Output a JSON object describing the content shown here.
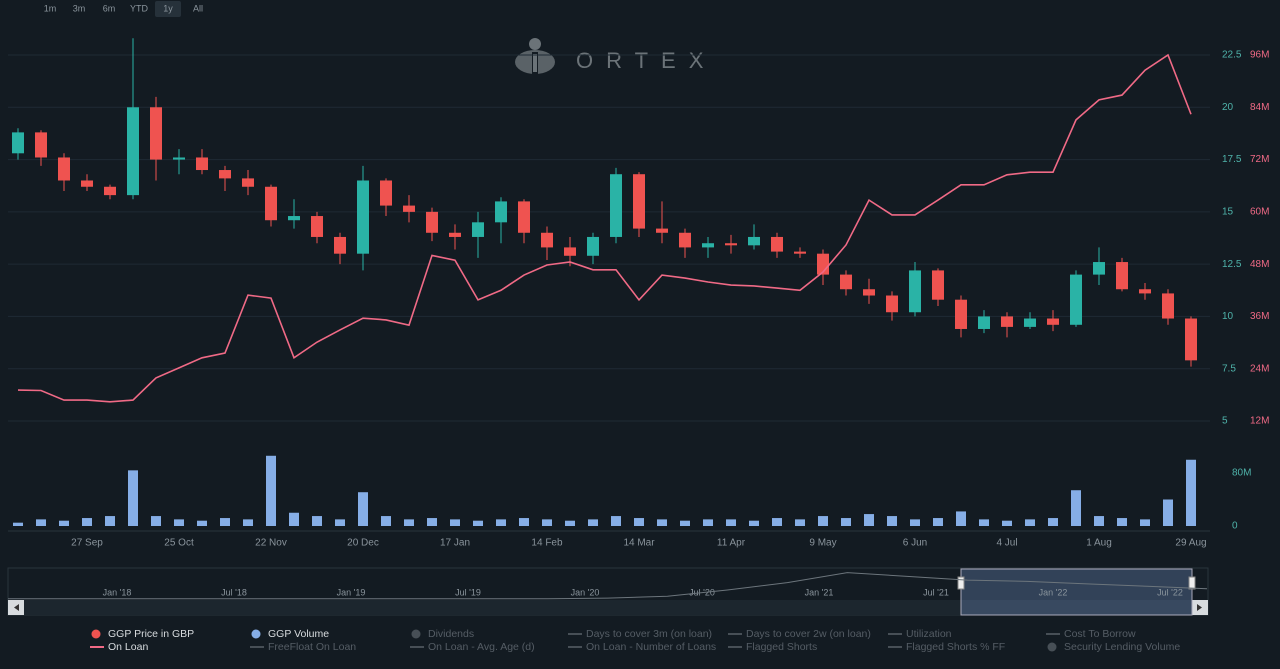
{
  "range_buttons": [
    "1m",
    "3m",
    "6m",
    "YTD",
    "1y",
    "All"
  ],
  "watermark": "ORTEX",
  "chart_data": {
    "type": "candlestick",
    "name": "GGP Price in GBP",
    "up_color": "#2ab3a6",
    "down_color": "#ef5350",
    "categories": [
      null,
      null,
      null,
      "27 Sep",
      null,
      null,
      null,
      "25 Oct",
      null,
      null,
      null,
      "22 Nov",
      null,
      null,
      null,
      "20 Dec",
      null,
      null,
      null,
      "17 Jan",
      null,
      null,
      null,
      "14 Feb",
      null,
      null,
      null,
      "14 Mar",
      null,
      null,
      null,
      "11 Apr",
      null,
      null,
      null,
      "9 May",
      null,
      null,
      null,
      "6 Jun",
      null,
      null,
      null,
      "4 Jul",
      null,
      null,
      null,
      "1 Aug",
      null,
      null,
      null,
      "29 Aug"
    ],
    "open": [
      17.8,
      18.8,
      17.6,
      16.5,
      16.2,
      15.8,
      20,
      17.5,
      17.6,
      17,
      16.6,
      16.2,
      14.6,
      14.8,
      13.8,
      13,
      16.5,
      15.3,
      15,
      14,
      13.8,
      14.5,
      15.5,
      14,
      13.3,
      12.9,
      13.8,
      16.8,
      14.2,
      14,
      13.3,
      13.5,
      13.4,
      13.8,
      13.1,
      13,
      12,
      11.3,
      11,
      10.2,
      12.2,
      10.8,
      9.4,
      10,
      9.5,
      9.9,
      9.6,
      12,
      12.6,
      11.3,
      11.1,
      9.9
    ],
    "high": [
      19,
      18.9,
      17.8,
      16.8,
      16.3,
      23.3,
      20.5,
      18,
      18,
      17.2,
      17,
      16.3,
      15.6,
      15,
      14,
      17.2,
      16.6,
      15.8,
      15.2,
      14.4,
      15,
      15.7,
      15.6,
      14.3,
      13.8,
      14,
      17.1,
      16.9,
      15.5,
      14.2,
      13.8,
      13.9,
      14.4,
      14,
      13.3,
      13.2,
      12.2,
      11.8,
      11.2,
      12.6,
      12.3,
      11,
      10.3,
      10.2,
      10.2,
      10.3,
      12.2,
      13.3,
      12.8,
      11.6,
      11.3,
      10
    ],
    "low": [
      17.5,
      17.2,
      16,
      16,
      15.6,
      15.6,
      16.5,
      16.8,
      16.8,
      16,
      15.8,
      14.3,
      14.2,
      13.5,
      12.5,
      12.2,
      14.8,
      14.5,
      13.6,
      13.2,
      12.8,
      13.5,
      13.5,
      12.7,
      12.4,
      12.5,
      13.5,
      13.8,
      13.5,
      12.8,
      12.8,
      13,
      13.2,
      12.8,
      12.8,
      11.5,
      11,
      10.6,
      9.8,
      10,
      10.5,
      9,
      9.2,
      9,
      9.4,
      9.3,
      9.5,
      11.5,
      11.2,
      10.8,
      9.6,
      7.6
    ],
    "close": [
      18.8,
      17.6,
      16.5,
      16.2,
      15.8,
      20,
      17.5,
      17.6,
      17,
      16.6,
      16.2,
      14.6,
      14.8,
      13.8,
      13,
      16.5,
      15.3,
      15,
      14,
      13.8,
      14.5,
      15.5,
      14,
      13.3,
      12.9,
      13.8,
      16.8,
      14.2,
      14,
      13.3,
      13.5,
      13.4,
      13.8,
      13.1,
      13,
      12,
      11.3,
      11,
      10.2,
      12.2,
      10.8,
      9.4,
      10,
      9.5,
      9.9,
      9.6,
      12,
      12.6,
      11.3,
      11.1,
      9.9,
      7.9
    ],
    "ylim": [
      5,
      22.5
    ],
    "yticks": [
      5,
      7.5,
      10,
      12.5,
      15,
      17.5,
      20,
      22.5
    ],
    "grid": true,
    "series": [
      {
        "name": "On Loan",
        "color": "#f06a86",
        "axis": "y2",
        "values": [
          19.1,
          19,
          16.8,
          16.8,
          16.4,
          16.8,
          21.9,
          24.2,
          26.5,
          27.6,
          40.9,
          40.2,
          26.5,
          30.1,
          32.9,
          35.6,
          35.2,
          34,
          50,
          48.9,
          39.8,
          42,
          45.5,
          47.8,
          48.5,
          46.7,
          46.7,
          39.8,
          45.5,
          44.8,
          43.9,
          43.2,
          43,
          42.5,
          42,
          46.2,
          52.4,
          62.7,
          59.3,
          59.3,
          62.7,
          66.2,
          66.2,
          68.5,
          69.1,
          69.1,
          81.1,
          85.7,
          86.8,
          92.5,
          96,
          82.4
        ]
      }
    ],
    "y2lim": [
      12,
      96
    ],
    "y2ticks": [
      {
        "value": 12,
        "label": "12M"
      },
      {
        "value": 24,
        "label": "24M"
      },
      {
        "value": 36,
        "label": "36M"
      },
      {
        "value": 48,
        "label": "48M"
      },
      {
        "value": 60,
        "label": "60M"
      },
      {
        "value": 72,
        "label": "72M"
      },
      {
        "value": 84,
        "label": "84M"
      },
      {
        "value": 96,
        "label": "96M"
      }
    ],
    "volume": {
      "name": "GGP Volume",
      "color": "#86aee6",
      "values": [
        5,
        10,
        8,
        12,
        15,
        84,
        15,
        10,
        8,
        12,
        10,
        106,
        20,
        15,
        10,
        51,
        15,
        10,
        12,
        10,
        8,
        10,
        12,
        10,
        8,
        10,
        15,
        12,
        10,
        8,
        10,
        10,
        8,
        12,
        10,
        15,
        12,
        18,
        15,
        10,
        12,
        22,
        10,
        8,
        10,
        12,
        54,
        15,
        12,
        10,
        40,
        100
      ],
      "ylim": [
        0,
        80
      ],
      "yticks": [
        0,
        {
          "value": 80,
          "label": "80M"
        }
      ]
    }
  },
  "navigator": {
    "labels": [
      "Jan '18",
      "Jul '18",
      "Jan '19",
      "Jul '19",
      "Jan '20",
      "Jul '20",
      "Jan '21",
      "Jul '21",
      "Jan '22",
      "Jul '22"
    ],
    "values": [
      1,
      1,
      1,
      1,
      1,
      1,
      1,
      1,
      1,
      1,
      1.5,
      3,
      8,
      14,
      22,
      19,
      16,
      15,
      13,
      11,
      9
    ]
  },
  "legend_inactive": [
    "Dividends",
    "Days to cover 3m (on loan)",
    "Days to cover 2w (on loan)",
    "Utilization",
    "Cost To Borrow",
    "FreeFloat On Loan",
    "On Loan - Avg. Age (d)",
    "On Loan - Number of Loans",
    "Flagged Shorts",
    "Flagged Shorts % FF",
    "Security Lending Volume"
  ]
}
